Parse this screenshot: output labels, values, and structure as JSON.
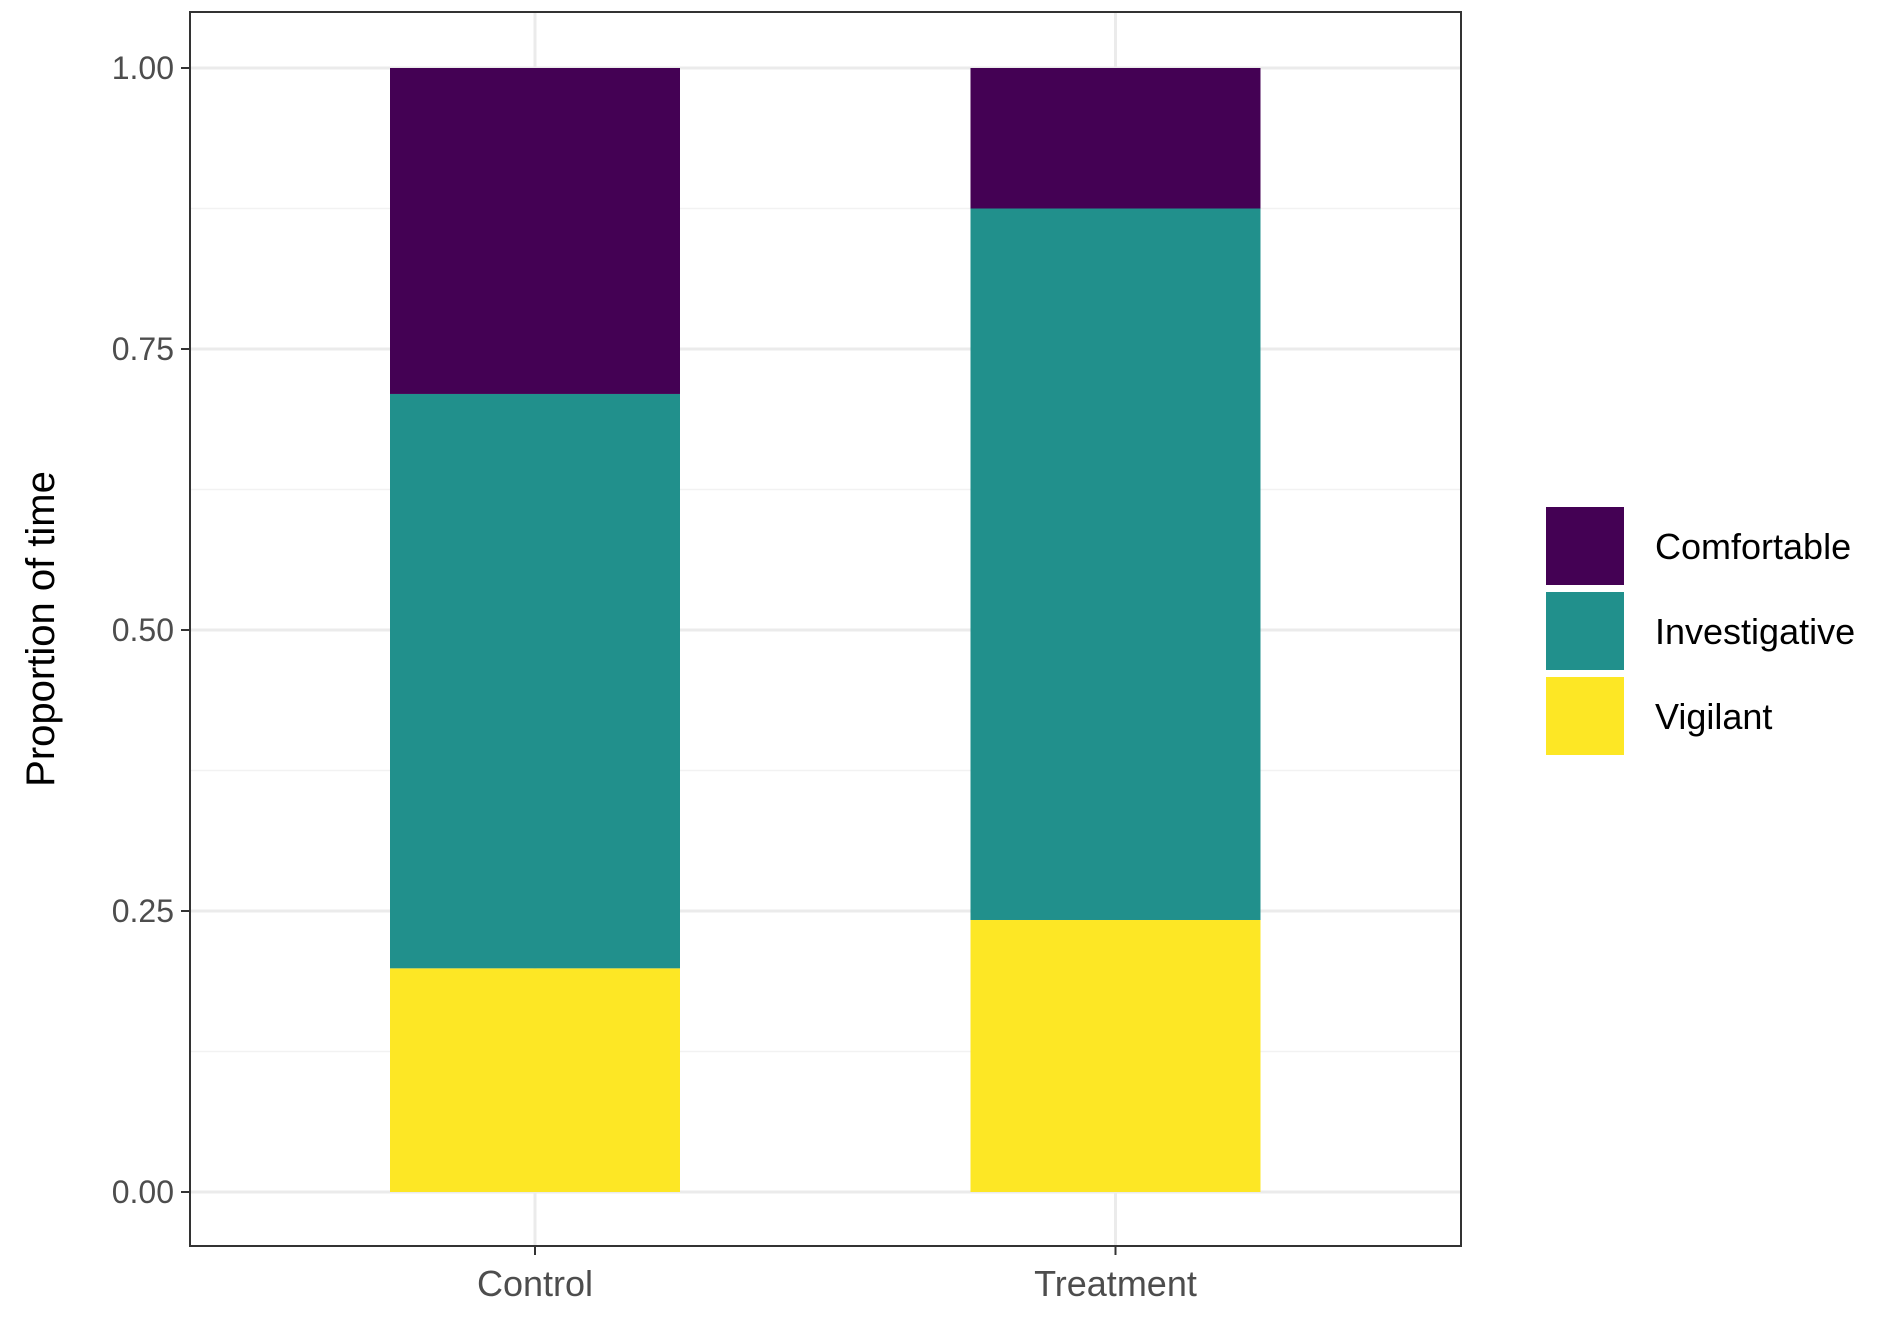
{
  "chart_data": {
    "type": "bar",
    "stacked": true,
    "categories": [
      "Control",
      "Treatment"
    ],
    "series": [
      {
        "name": "Vigilant",
        "color": "#FDE725",
        "values": [
          0.199,
          0.242
        ]
      },
      {
        "name": "Investigative",
        "color": "#21908C",
        "values": [
          0.511,
          0.633
        ]
      },
      {
        "name": "Comfortable",
        "color": "#440154",
        "values": [
          0.29,
          0.125
        ]
      }
    ],
    "legend_order": [
      "Comfortable",
      "Investigative",
      "Vigilant"
    ],
    "xlabel": "",
    "ylabel": "Proportion of time",
    "ylim": [
      0,
      1
    ],
    "yticks": [
      "0.00",
      "0.25",
      "0.50",
      "0.75",
      "1.00"
    ],
    "grid": true,
    "legend_position": "right"
  }
}
